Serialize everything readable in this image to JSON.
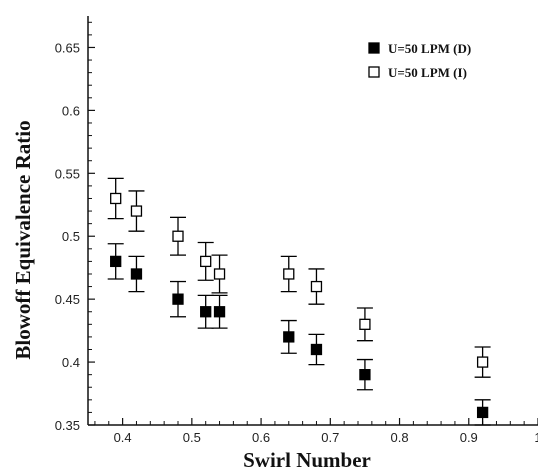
{
  "chart_data": {
    "type": "scatter",
    "xlabel": "Swirl Number",
    "ylabel": "Blowoff Equivalence Ratio",
    "xlim": [
      0.35,
      1.0
    ],
    "ylim": [
      0.35,
      0.675
    ],
    "x_ticks": [
      {
        "value": 0.4,
        "label": "0.4"
      },
      {
        "value": 0.5,
        "label": "0.5"
      },
      {
        "value": 0.6,
        "label": "0.6"
      },
      {
        "value": 0.7,
        "label": "0.7"
      },
      {
        "value": 0.8,
        "label": "0.8"
      },
      {
        "value": 0.9,
        "label": "0.9"
      },
      {
        "value": 1.0,
        "label": "1"
      }
    ],
    "y_ticks": [
      {
        "value": 0.35,
        "label": "0.35"
      },
      {
        "value": 0.4,
        "label": "0.4"
      },
      {
        "value": 0.45,
        "label": "0.45"
      },
      {
        "value": 0.5,
        "label": "0.5"
      },
      {
        "value": 0.55,
        "label": "0.55"
      },
      {
        "value": 0.6,
        "label": "0.6"
      },
      {
        "value": 0.65,
        "label": "0.65"
      }
    ],
    "grid": false,
    "legend_position": "top-right",
    "series": [
      {
        "name": "U=50 LPM (D)",
        "marker": "filled-square",
        "color": "#000000",
        "points": [
          {
            "x": 0.39,
            "y": 0.48,
            "err": 0.014
          },
          {
            "x": 0.42,
            "y": 0.47,
            "err": 0.014
          },
          {
            "x": 0.48,
            "y": 0.45,
            "err": 0.014
          },
          {
            "x": 0.52,
            "y": 0.44,
            "err": 0.013
          },
          {
            "x": 0.54,
            "y": 0.44,
            "err": 0.013
          },
          {
            "x": 0.64,
            "y": 0.42,
            "err": 0.013
          },
          {
            "x": 0.68,
            "y": 0.41,
            "err": 0.012
          },
          {
            "x": 0.75,
            "y": 0.39,
            "err": 0.012
          },
          {
            "x": 0.92,
            "y": 0.36,
            "err": 0.01
          }
        ]
      },
      {
        "name": "U=50 LPM (I)",
        "marker": "open-square",
        "color": "#000000",
        "points": [
          {
            "x": 0.39,
            "y": 0.53,
            "err": 0.016
          },
          {
            "x": 0.42,
            "y": 0.52,
            "err": 0.016
          },
          {
            "x": 0.48,
            "y": 0.5,
            "err": 0.015
          },
          {
            "x": 0.52,
            "y": 0.48,
            "err": 0.015
          },
          {
            "x": 0.54,
            "y": 0.47,
            "err": 0.015
          },
          {
            "x": 0.64,
            "y": 0.47,
            "err": 0.014
          },
          {
            "x": 0.68,
            "y": 0.46,
            "err": 0.014
          },
          {
            "x": 0.75,
            "y": 0.43,
            "err": 0.013
          },
          {
            "x": 0.92,
            "y": 0.4,
            "err": 0.012
          }
        ]
      }
    ]
  }
}
